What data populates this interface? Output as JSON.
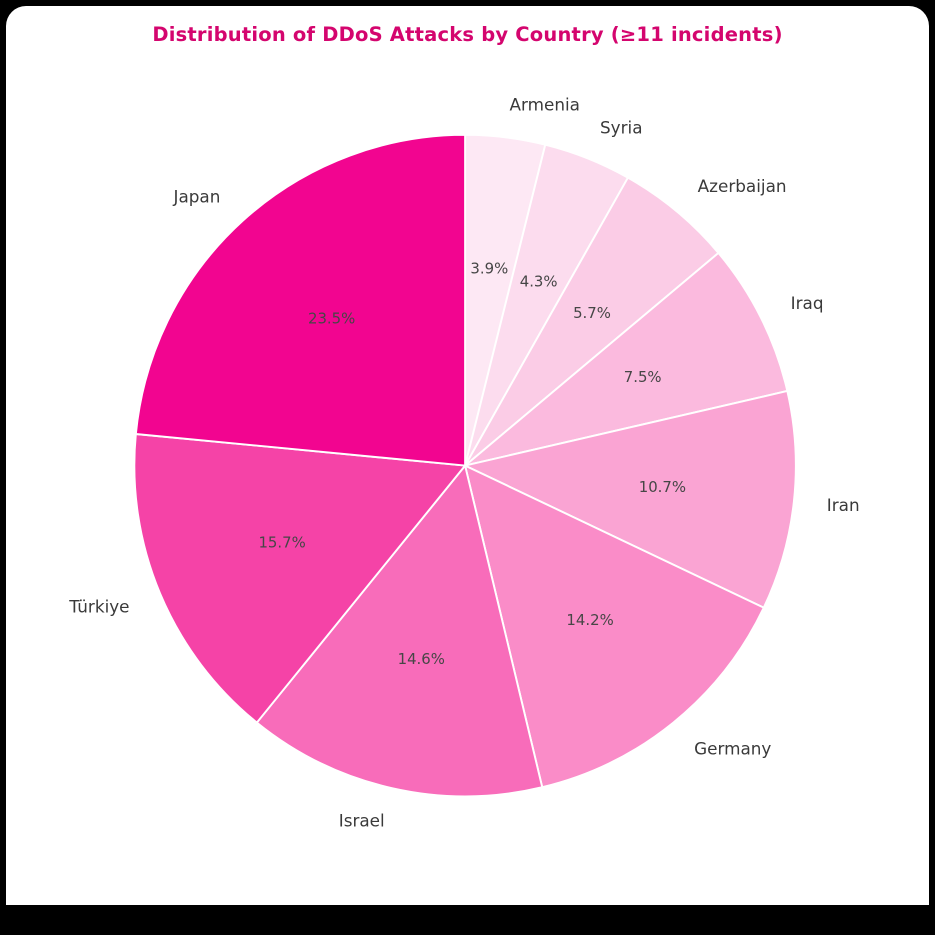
{
  "chart_data": {
    "type": "pie",
    "title": "Distribution of DDoS Attacks by Country (≥11 incidents)",
    "labels": [
      "Armenia",
      "Syria",
      "Azerbaijan",
      "Iraq",
      "Iran",
      "Germany",
      "Israel",
      "Türkiye",
      "Japan"
    ],
    "slice_ids": [
      "armenia",
      "syria",
      "azerbaijan",
      "iraq",
      "iran",
      "germany",
      "israel",
      "turkiye",
      "japan"
    ],
    "values": [
      3.9,
      4.3,
      5.7,
      7.5,
      10.7,
      14.2,
      14.6,
      15.7,
      23.5
    ],
    "pct_labels": [
      "3.9%",
      "4.3%",
      "5.7%",
      "7.5%",
      "10.7%",
      "14.2%",
      "14.6%",
      "15.7%",
      "23.5%"
    ],
    "colors": [
      "#fde8f4",
      "#fcdcee",
      "#fbcce6",
      "#fbbade",
      "#faa4d3",
      "#fa8cc8",
      "#f86cba",
      "#f543a7",
      "#f20590"
    ],
    "start_angle_deg": 90,
    "direction": "clockwise",
    "slice_edge_color": "#ffffff",
    "label_color": "#3a3a3a",
    "pct_color": "#464646",
    "title_color": "#d4056e",
    "background_color": "#ffffff",
    "legend": false,
    "grid": false
  }
}
